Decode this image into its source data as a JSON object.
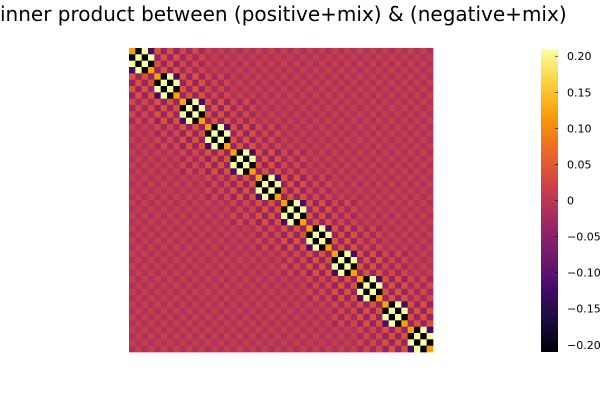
{
  "chart_data": {
    "type": "heatmap",
    "title": "inner product between (positive+mix) & (negative+mix)",
    "xlabel": "",
    "ylabel": "",
    "rows": 48,
    "cols": 48,
    "diagonal_block_count": 12,
    "block_size": 4,
    "clim": [
      -0.21,
      0.21
    ],
    "colorbar": {
      "ticks": [
        0.2,
        0.15,
        0.1,
        0.05,
        0,
        -0.05,
        -0.1,
        -0.15,
        -0.2
      ],
      "tick_labels": [
        "0.20",
        "0.15",
        "0.10",
        "0.05",
        "0",
        "−0.05",
        "−0.10",
        "−0.15",
        "−0.20"
      ],
      "colormap": "inferno",
      "stops": [
        "#000004",
        "#1b0c41",
        "#4a0c6b",
        "#781c6d",
        "#a52c60",
        "#cf4446",
        "#ed6925",
        "#fb9b06",
        "#f7d13d",
        "#fcffa4"
      ]
    },
    "background_value": 0.0,
    "grid": false,
    "legend": "right colorbar"
  }
}
